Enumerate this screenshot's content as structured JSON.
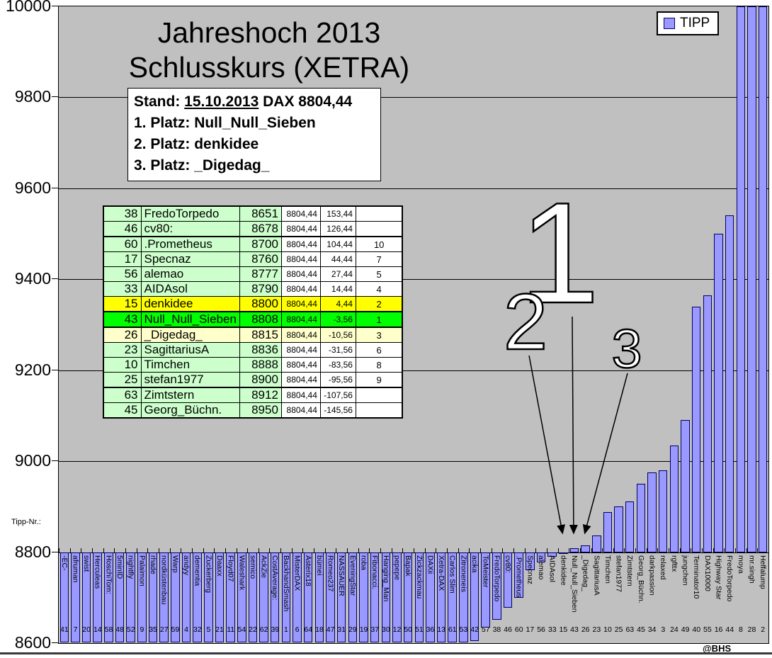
{
  "page": {
    "credit": "@BHS",
    "tipp_nr_label": "Tipp-Nr.:"
  },
  "title": {
    "line1": "Jahreshoch 2013",
    "line2": "Schlusskurs (XETRA)"
  },
  "legend": {
    "label": "TIPP",
    "marker_color": "#9999ff"
  },
  "info_box": {
    "stand_label": "Stand:",
    "stand_date": "15.10.2013",
    "dax_text": "DAX 8804,44",
    "platz1": "1. Platz: Null_Null_Sieben",
    "platz2": "2. Platz: denkidee",
    "platz3": "3. Platz: _Digedag_"
  },
  "table": {
    "row_fields": [
      "nr",
      "name",
      "tipp",
      "dax",
      "diff",
      "rank",
      "color",
      "thick_top"
    ],
    "rows": [
      [
        "38",
        "FredoTorpedo",
        "8651",
        "8804,44",
        "153,44",
        "",
        "g",
        false
      ],
      [
        "46",
        "cv80:",
        "8678",
        "8804,44",
        "126,44",
        "",
        "g",
        false
      ],
      [
        "60",
        ".Prometheus",
        "8700",
        "8804,44",
        "104,44",
        "10",
        "g",
        true
      ],
      [
        "17",
        "Specnaz",
        "8760",
        "8804,44",
        "44,44",
        "7",
        "g",
        false
      ],
      [
        "56",
        "alemao",
        "8777",
        "8804,44",
        "27,44",
        "5",
        "g",
        false
      ],
      [
        "33",
        "AIDAsol",
        "8790",
        "8804,44",
        "14,44",
        "4",
        "g",
        false
      ],
      [
        "15",
        "denkidee",
        "8800",
        "8804,44",
        "4,44",
        "2",
        "y",
        false
      ],
      [
        "43",
        "Null_Null_Sieben",
        "8808",
        "8804,44",
        "-3,56",
        "1",
        "G",
        true
      ],
      [
        "26",
        "_Digedag_",
        "8815",
        "8804,44",
        "-10,56",
        "3",
        "p",
        true
      ],
      [
        "23",
        "SagittariusA",
        "8836",
        "8804,44",
        "-31,56",
        "6",
        "g",
        false
      ],
      [
        "10",
        "Timchen",
        "8888",
        "8804,44",
        "-83,56",
        "8",
        "g",
        false
      ],
      [
        "25",
        "stefan1977",
        "8900",
        "8804,44",
        "-95,56",
        "9",
        "g",
        false
      ],
      [
        "63",
        "Zimtstern",
        "8912",
        "8804,44",
        "-107,56",
        "",
        "g",
        true
      ],
      [
        "45",
        "Georg_Büchn.",
        "8950",
        "8804,44",
        "-145,56",
        "",
        "g",
        false
      ]
    ],
    "row_colors": {
      "g": "#ccffcc",
      "y": "#ffff00",
      "G": "#00ff00",
      "p": "#ffffcc"
    }
  },
  "chart_data": {
    "type": "bar",
    "title": "Jahreshoch 2013 Schlusskurs (XETRA)",
    "series_name": "TIPP",
    "xlabel": "Tipp-Nr.:",
    "ylabel": "",
    "ylim": [
      8600,
      10000
    ],
    "yticks": [
      8600,
      8800,
      9000,
      9200,
      9400,
      9600,
      9800,
      10000
    ],
    "axis_cross": 8800,
    "grid": true,
    "legend_position": "top-right",
    "bar_color": "#9999ff",
    "bar_fields": [
      "tipp_nr",
      "name",
      "value",
      "clip"
    ],
    "bars": [
      [
        41,
        "-EC-",
        8600,
        "low"
      ],
      [
        7,
        "afruman",
        8600,
        "low"
      ],
      [
        20,
        "swist",
        8600,
        "low"
      ],
      [
        14,
        "Herculeas",
        8600,
        "low"
      ],
      [
        58,
        "HoschiTom:",
        8600,
        "low"
      ],
      [
        48,
        "5minID",
        8600,
        "low"
      ],
      [
        52,
        "nightfly",
        8600,
        "low"
      ],
      [
        9,
        "Palaimon",
        8600,
        "low"
      ],
      [
        35,
        "rhade",
        8600,
        "low"
      ],
      [
        27,
        "nordküstenbau",
        8600,
        "low"
      ],
      [
        59,
        "Warp",
        8600,
        "low"
      ],
      [
        4,
        "andyy",
        8600,
        "low"
      ],
      [
        32,
        "dementia",
        8600,
        "low"
      ],
      [
        5,
        "Zuckerberg",
        8600,
        "low"
      ],
      [
        21,
        "Daaxx",
        8600,
        "low"
      ],
      [
        11,
        "Floyd07",
        8600,
        "low"
      ],
      [
        54,
        "Waleshark",
        8600,
        "low"
      ],
      [
        22,
        "semico",
        8600,
        "low"
      ],
      [
        62,
        "AckZie",
        8600,
        "low"
      ],
      [
        39,
        "CostAverage:",
        8600,
        "low"
      ],
      [
        1,
        "BackhandSmash",
        8600,
        "low"
      ],
      [
        6,
        "MisterDAX",
        8600,
        "low"
      ],
      [
        64,
        "Asterix18",
        8600,
        "low"
      ],
      [
        18,
        "bümei",
        8600,
        "low"
      ],
      [
        47,
        "Romeo237",
        8600,
        "low"
      ],
      [
        31,
        "NASSAUER",
        8600,
        "low"
      ],
      [
        29,
        "EveningStar",
        8600,
        "low"
      ],
      [
        19,
        "roba",
        8600,
        "low"
      ],
      [
        37,
        "Fibonacci.",
        8600,
        "low"
      ],
      [
        30,
        "Hanging_Man",
        8600,
        "low"
      ],
      [
        12,
        "pepepe",
        8600,
        "low"
      ],
      [
        50,
        "Bapak",
        8600,
        "low"
      ],
      [
        51,
        "Zickzackmau",
        8600,
        "low"
      ],
      [
        36,
        "DAXii",
        8600,
        "low"
      ],
      [
        13,
        "Xetra-DAX",
        8600,
        "low"
      ],
      [
        61,
        "Carlos Slim",
        8600,
        "low"
      ],
      [
        53,
        "Zitroneneis",
        8600,
        "low"
      ],
      [
        42,
        "acika",
        8605,
        null
      ],
      [
        57,
        "ToMeister",
        8635,
        null
      ],
      [
        38,
        "FredoTorpedo",
        8651,
        null
      ],
      [
        46,
        "cv80:",
        8678,
        null
      ],
      [
        60,
        ".Prometheus",
        8700,
        null
      ],
      [
        17,
        "Specnaz",
        8760,
        null
      ],
      [
        56,
        "alemao",
        8777,
        null
      ],
      [
        33,
        "AIDAsol",
        8790,
        null
      ],
      [
        15,
        "denkidee",
        8800,
        null
      ],
      [
        43,
        "Null_Null_Sieben",
        8808,
        null
      ],
      [
        26,
        "_Digedag_",
        8815,
        null
      ],
      [
        23,
        "SagittariusA",
        8836,
        null
      ],
      [
        10,
        "Timchen",
        8888,
        null
      ],
      [
        25,
        "stefan1977",
        8900,
        null
      ],
      [
        63,
        "Zimtstern",
        8912,
        null
      ],
      [
        45,
        "Georg_Büchn.",
        8950,
        null
      ],
      [
        34,
        "darkpassion",
        8975,
        null
      ],
      [
        3,
        "relaxed",
        8980,
        null
      ],
      [
        24,
        "rgfttx",
        9035,
        null
      ],
      [
        49,
        "jungchen",
        9090,
        null
      ],
      [
        40,
        "Terminator10",
        9340,
        null
      ],
      [
        55,
        "DAX10000",
        9365,
        null
      ],
      [
        16,
        "Highway Star",
        9500,
        null
      ],
      [
        44,
        "FredoTorpedo",
        9540,
        null
      ],
      [
        8,
        "moya",
        10000,
        "high"
      ],
      [
        28,
        "mr.singh",
        10000,
        "high"
      ],
      [
        2,
        "Heffalump",
        10000,
        "high"
      ]
    ],
    "annotations": [
      {
        "label": "1",
        "target": "Null_Null_Sieben"
      },
      {
        "label": "2",
        "target": "denkidee"
      },
      {
        "label": "3",
        "target": "_Digedag_"
      }
    ]
  },
  "colors": {
    "plot_background": "#c0c0c0",
    "bar_fill": "#9999ff",
    "bar_border": "#000066",
    "gridline": "#000000"
  }
}
